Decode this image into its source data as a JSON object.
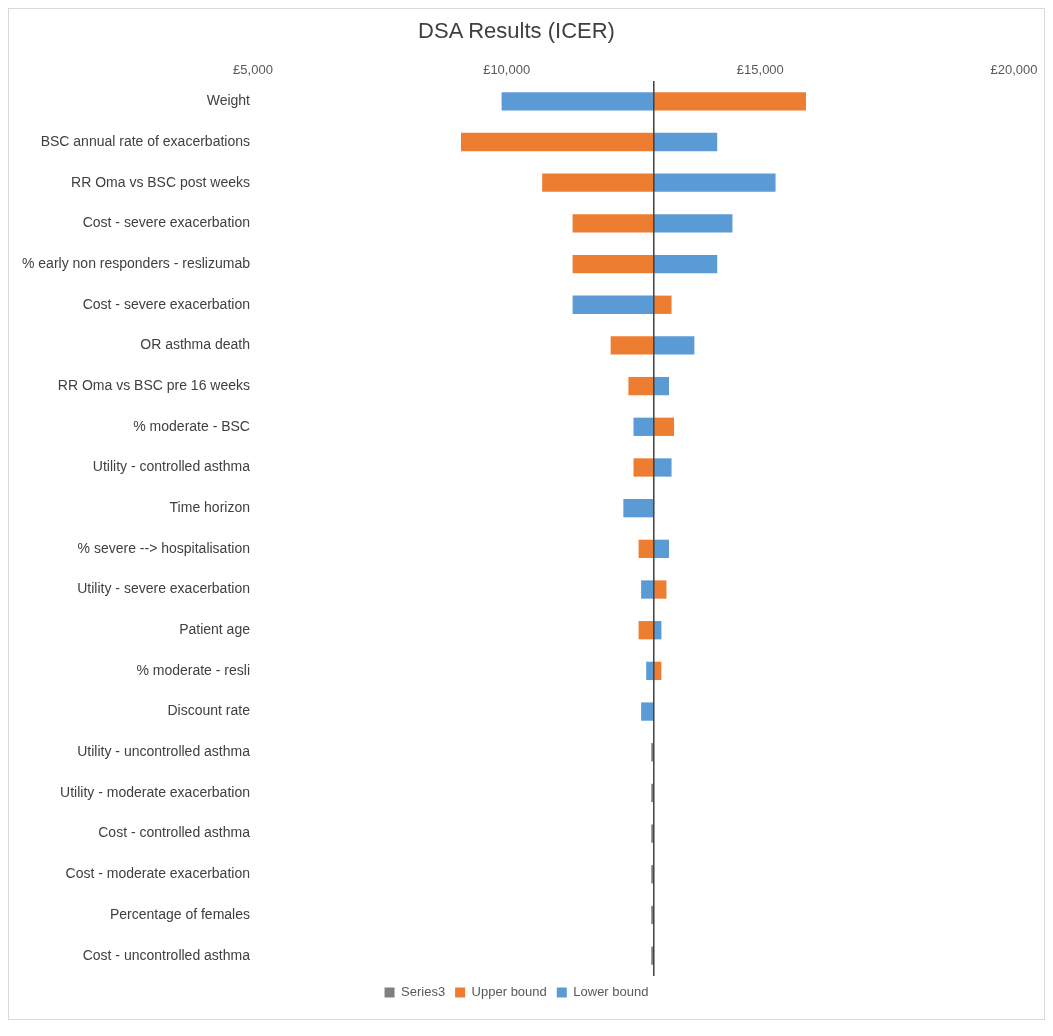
{
  "chart_data": {
    "type": "bar",
    "orientation": "horizontal",
    "title": "DSA Results (ICER)",
    "categories": [
      "Weight",
      "BSC annual rate of exacerbations",
      "RR Oma vs BSC post weeks",
      "Cost - severe exacerbation",
      "% early non responders - reslizumab",
      "Cost - severe exacerbation",
      "OR asthma death",
      "RR Oma vs BSC pre 16 weeks",
      "% moderate - BSC",
      "Utility - controlled asthma",
      "Time horizon",
      "% severe --> hospitalisation",
      "Utility - severe exacerbation",
      "Patient age",
      "% moderate - resli",
      "Discount rate",
      "Utility - uncontrolled asthma",
      "Utility - moderate exacerbation",
      "Cost - controlled asthma",
      "Cost - moderate exacerbation",
      "Percentage of females",
      "Cost - uncontrolled asthma"
    ],
    "series": [
      {
        "name": "Series3",
        "color": "#7f7f7f",
        "base": [
          null,
          null,
          null,
          null,
          null,
          null,
          null,
          null,
          null,
          null,
          null,
          null,
          null,
          null,
          null,
          null,
          12900,
          12900,
          12900,
          12900,
          12900,
          12900
        ],
        "values": [
          null,
          null,
          null,
          null,
          null,
          null,
          null,
          null,
          null,
          null,
          null,
          null,
          null,
          null,
          null,
          null,
          -50,
          -50,
          -50,
          -50,
          -50,
          -50
        ]
      },
      {
        "name": "Upper bound",
        "color": "#ed7d31",
        "base": [
          12900,
          12900,
          12900,
          12900,
          12900,
          12900,
          12900,
          12900,
          12900,
          12900,
          null,
          12900,
          12900,
          12900,
          12900,
          null,
          null,
          null,
          null,
          null,
          null,
          null
        ],
        "values": [
          3000,
          -3800,
          -2200,
          -1600,
          -1600,
          350,
          -850,
          -500,
          400,
          -400,
          null,
          -300,
          250,
          -300,
          150,
          null,
          null,
          null,
          null,
          null,
          null,
          null
        ]
      },
      {
        "name": "Lower bound",
        "color": "#5b9bd5",
        "base": [
          12900,
          12900,
          12900,
          12900,
          12900,
          12900,
          12900,
          12900,
          12900,
          12900,
          12900,
          12900,
          12900,
          12900,
          12900,
          12900,
          null,
          null,
          null,
          null,
          null,
          null
        ],
        "values": [
          -3000,
          1250,
          2400,
          1550,
          1250,
          -1600,
          800,
          300,
          -400,
          350,
          -600,
          300,
          -250,
          150,
          -150,
          -250,
          null,
          null,
          null,
          null,
          null,
          null
        ]
      }
    ],
    "xlim": [
      5000,
      20000
    ],
    "xticks": [
      {
        "value": 5000,
        "label": "£5,000"
      },
      {
        "value": 10000,
        "label": "£10,000"
      },
      {
        "value": 15000,
        "label": "£15,000"
      },
      {
        "value": 20000,
        "label": "£20,000"
      }
    ],
    "ref_lines": [
      {
        "axis": "x",
        "value": 12900,
        "color": "#404040"
      }
    ],
    "grid": false,
    "legend": "bottom"
  }
}
